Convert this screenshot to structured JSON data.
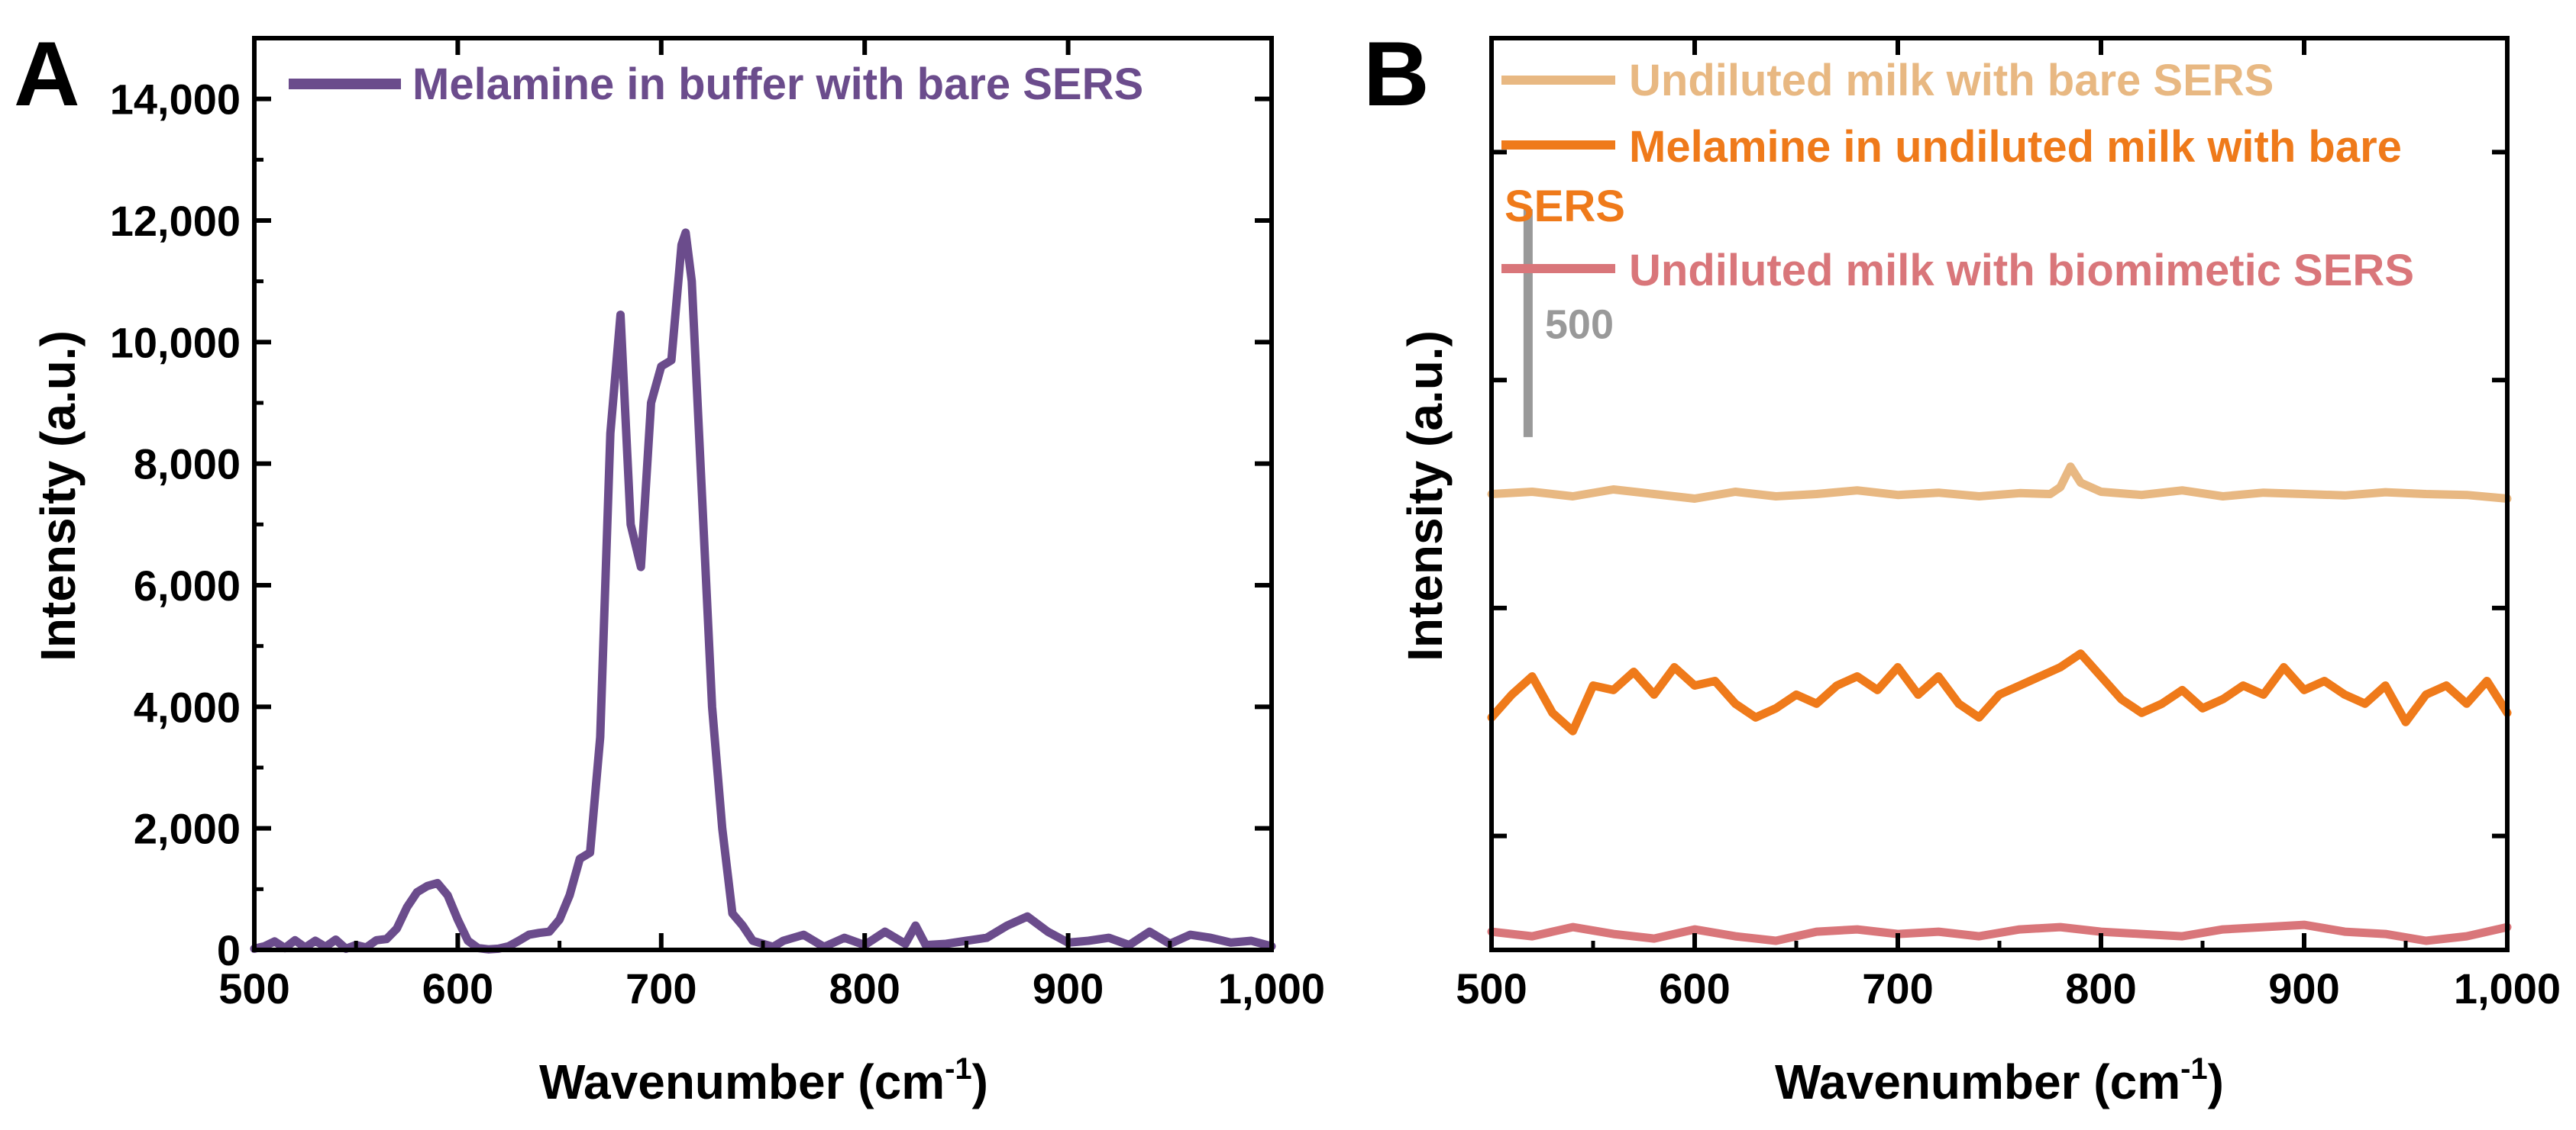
{
  "chart_data": [
    {
      "panel_label": "A",
      "type": "line",
      "xlabel": "Wavenumber (cm",
      "xlabel_sup": "-1",
      "xlabel_tail": ")",
      "ylabel": "Intensity (a.u.)",
      "xlim": [
        500,
        1000
      ],
      "ylim": [
        0,
        15000
      ],
      "xticks": [
        500,
        600,
        700,
        800,
        900,
        1000
      ],
      "xtick_labels": [
        "500",
        "600",
        "700",
        "800",
        "900",
        "1,000"
      ],
      "yticks": [
        0,
        2000,
        4000,
        6000,
        8000,
        10000,
        12000,
        14000
      ],
      "ytick_labels": [
        "0",
        "2,000",
        "4,000",
        "6,000",
        "8,000",
        "10,000",
        "12,000",
        "14,000"
      ],
      "legend_position": "top-left",
      "series": [
        {
          "name": "Melamine in buffer with bare SERS",
          "color": "#6b4c8c",
          "x": [
            500,
            505,
            510,
            515,
            520,
            525,
            530,
            535,
            540,
            545,
            550,
            555,
            560,
            565,
            570,
            575,
            580,
            585,
            590,
            595,
            600,
            605,
            610,
            615,
            620,
            625,
            630,
            635,
            640,
            645,
            650,
            655,
            660,
            665,
            670,
            675,
            680,
            685,
            690,
            695,
            700,
            705,
            710,
            712,
            715,
            720,
            725,
            730,
            735,
            740,
            745,
            750,
            755,
            760,
            770,
            780,
            790,
            800,
            810,
            820,
            825,
            830,
            840,
            850,
            860,
            870,
            880,
            890,
            900,
            910,
            920,
            930,
            940,
            950,
            960,
            970,
            980,
            990,
            1000
          ],
          "y": [
            20,
            60,
            140,
            30,
            160,
            40,
            150,
            50,
            170,
            20,
            80,
            40,
            160,
            180,
            350,
            700,
            950,
            1050,
            1100,
            900,
            500,
            150,
            30,
            10,
            20,
            60,
            150,
            250,
            280,
            300,
            500,
            900,
            1500,
            1600,
            3500,
            8500,
            10450,
            7000,
            6300,
            9000,
            9600,
            9700,
            11600,
            11800,
            11000,
            7500,
            4000,
            2000,
            600,
            400,
            150,
            100,
            50,
            150,
            250,
            50,
            200,
            80,
            300,
            100,
            400,
            80,
            100,
            150,
            200,
            400,
            550,
            300,
            120,
            150,
            200,
            80,
            300,
            100,
            250,
            200,
            120,
            150,
            60
          ]
        }
      ]
    },
    {
      "panel_label": "B",
      "type": "line",
      "xlabel": "Wavenumber (cm",
      "xlabel_sup": "-1",
      "xlabel_tail": ")",
      "ylabel": "Intensity (a.u.)",
      "xlim": [
        500,
        1000
      ],
      "ylim": [
        0,
        2000
      ],
      "xticks": [
        500,
        600,
        700,
        800,
        900,
        1000
      ],
      "xtick_labels": [
        "500",
        "600",
        "700",
        "800",
        "900",
        "1,000"
      ],
      "yticks_unlabeled": [
        0,
        250,
        750,
        1250,
        1750
      ],
      "scale_bar": {
        "label": "500",
        "value": 500,
        "y_from": 1125,
        "y_to": 1625,
        "x": 518,
        "color": "#999999"
      },
      "legend_position": "top-left",
      "series": [
        {
          "name": "Undiluted milk with bare SERS",
          "color": "#e8b882",
          "x": [
            500,
            520,
            540,
            560,
            580,
            600,
            620,
            640,
            660,
            680,
            700,
            720,
            740,
            760,
            775,
            780,
            785,
            790,
            800,
            820,
            840,
            860,
            880,
            900,
            920,
            940,
            960,
            980,
            1000
          ],
          "y": [
            1000,
            1005,
            995,
            1010,
            1000,
            990,
            1005,
            995,
            1000,
            1008,
            998,
            1003,
            995,
            1002,
            1000,
            1015,
            1060,
            1025,
            1005,
            998,
            1008,
            995,
            1003,
            1000,
            997,
            1004,
            1000,
            998,
            990
          ]
        },
        {
          "name": "Melamine in undiluted milk with bare SERS",
          "color": "#ef7a1a",
          "x": [
            500,
            510,
            520,
            530,
            540,
            550,
            560,
            570,
            580,
            590,
            600,
            610,
            620,
            630,
            640,
            650,
            660,
            670,
            680,
            690,
            700,
            710,
            720,
            730,
            740,
            750,
            760,
            770,
            780,
            790,
            800,
            810,
            820,
            830,
            840,
            850,
            860,
            870,
            880,
            890,
            900,
            910,
            920,
            930,
            940,
            950,
            960,
            970,
            980,
            990,
            1000
          ],
          "y": [
            510,
            560,
            600,
            520,
            480,
            580,
            570,
            610,
            560,
            620,
            580,
            590,
            540,
            510,
            530,
            560,
            540,
            580,
            600,
            570,
            620,
            560,
            600,
            540,
            510,
            560,
            580,
            600,
            620,
            650,
            600,
            550,
            520,
            540,
            570,
            530,
            550,
            580,
            560,
            620,
            570,
            590,
            560,
            540,
            580,
            500,
            560,
            580,
            540,
            590,
            520
          ]
        },
        {
          "name": "Undiluted milk with biomimetic SERS",
          "color": "#d9767a",
          "x": [
            500,
            520,
            540,
            560,
            580,
            600,
            620,
            640,
            660,
            680,
            700,
            720,
            740,
            760,
            780,
            800,
            820,
            840,
            860,
            880,
            900,
            920,
            940,
            960,
            980,
            1000
          ],
          "y": [
            40,
            30,
            50,
            35,
            25,
            45,
            30,
            20,
            40,
            45,
            35,
            40,
            30,
            45,
            50,
            40,
            35,
            30,
            45,
            50,
            55,
            40,
            35,
            20,
            30,
            50
          ]
        }
      ],
      "legend_wrap": {
        "line2_tail": "SERS"
      }
    }
  ]
}
